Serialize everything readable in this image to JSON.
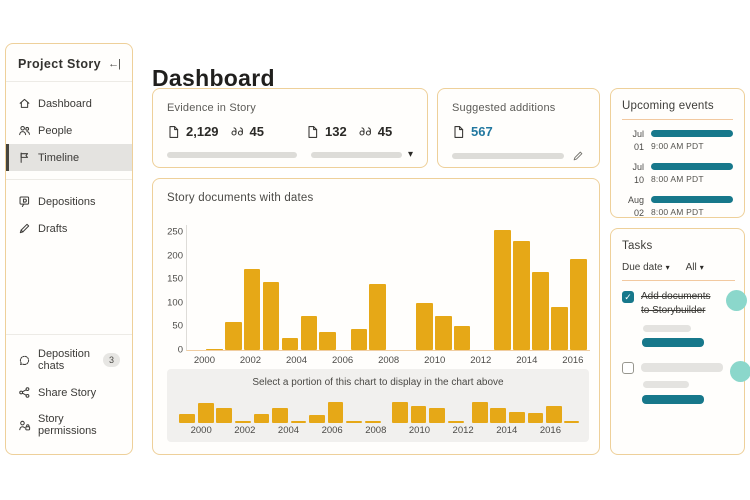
{
  "sidebar": {
    "title": "Project Story",
    "collapse_glyph": "←|",
    "items": [
      {
        "label": "Dashboard"
      },
      {
        "label": "People"
      },
      {
        "label": "Timeline",
        "selected": true
      },
      {
        "label": "Depositions"
      },
      {
        "label": "Drafts"
      }
    ],
    "footer_items": [
      {
        "label": "Deposition chats",
        "badge": "3"
      },
      {
        "label": "Share Story"
      },
      {
        "label": "Story permissions"
      }
    ]
  },
  "header": {
    "title": "Dashboard"
  },
  "evidence_card": {
    "title": "Evidence in Story",
    "groups": [
      {
        "documents": "2,129",
        "quotes": "45"
      },
      {
        "documents": "132",
        "quotes": "45"
      }
    ],
    "dropdown_glyph": "▾"
  },
  "suggested_card": {
    "title": "Suggested additions",
    "documents": "567"
  },
  "events_card": {
    "title": "Upcoming events",
    "events": [
      {
        "month": "Jul",
        "day": "01",
        "time": "9:00 AM PDT"
      },
      {
        "month": "Jul",
        "day": "10",
        "time": "8:00 AM PDT"
      },
      {
        "month": "Aug",
        "day": "02",
        "time": "8:00 AM PDT"
      }
    ]
  },
  "tasks_card": {
    "title": "Tasks",
    "filters": [
      {
        "label": "Due date",
        "glyph": "▾"
      },
      {
        "label": "All",
        "glyph": "▾"
      }
    ],
    "check_glyph": "✓",
    "tasks": [
      {
        "checked": true,
        "label": "Add documents to Storybuilder"
      },
      {
        "checked": false,
        "label": ""
      }
    ]
  },
  "chart_data": [
    {
      "type": "bar",
      "title": "Story documents with dates",
      "xlabel": "",
      "ylabel": "",
      "ylim": [
        0,
        265
      ],
      "yticks": [
        250,
        200,
        150,
        100,
        50,
        0
      ],
      "xdomain": [
        1999.2,
        2016.7
      ],
      "xticks": [
        2000,
        2002,
        2004,
        2006,
        2008,
        2010,
        2012,
        2014,
        2016
      ],
      "bar_width_years": 0.72,
      "grid": false,
      "legend": false,
      "bars": [
        [
          2000.03,
          3
        ],
        [
          2000.85,
          60
        ],
        [
          2001.67,
          172
        ],
        [
          2002.49,
          145
        ],
        [
          2003.31,
          25
        ],
        [
          2004.13,
          72
        ],
        [
          2004.95,
          38
        ],
        [
          2006.3,
          45
        ],
        [
          2007.1,
          140
        ],
        [
          2009.15,
          100
        ],
        [
          2009.97,
          72
        ],
        [
          2010.79,
          50
        ],
        [
          2012.55,
          255
        ],
        [
          2013.37,
          232
        ],
        [
          2014.19,
          165
        ],
        [
          2015.01,
          92
        ],
        [
          2015.83,
          192
        ]
      ]
    },
    {
      "type": "bar",
      "role": "brush",
      "caption": "Select a portion of this chart to display in the chart above",
      "ylim": [
        0,
        100
      ],
      "xdomain": [
        1998.8,
        2017.4
      ],
      "xticks": [
        2000,
        2002,
        2004,
        2006,
        2008,
        2010,
        2012,
        2014,
        2016
      ],
      "bar_width_years": 0.72,
      "bars": [
        [
          1999.0,
          31
        ],
        [
          1999.85,
          68
        ],
        [
          2000.7,
          49
        ],
        [
          2001.55,
          6
        ],
        [
          2002.4,
          31
        ],
        [
          2003.25,
          49
        ],
        [
          2004.1,
          6
        ],
        [
          2004.95,
          26
        ],
        [
          2005.8,
          70
        ],
        [
          2006.65,
          6
        ],
        [
          2007.5,
          6
        ],
        [
          2008.75,
          70
        ],
        [
          2009.6,
          58
        ],
        [
          2010.45,
          49
        ],
        [
          2011.3,
          6
        ],
        [
          2012.4,
          70
        ],
        [
          2013.25,
          51
        ],
        [
          2014.1,
          36
        ],
        [
          2014.95,
          32
        ],
        [
          2015.8,
          57
        ],
        [
          2016.6,
          6
        ]
      ]
    }
  ],
  "colors": {
    "accent_amber": "#e6a817",
    "teal": "#17788b",
    "teal_light": "#8bd7cb",
    "card_border": "#eed09a",
    "divider_orange": "#f2c9a0",
    "link_blue": "#2278a0"
  }
}
